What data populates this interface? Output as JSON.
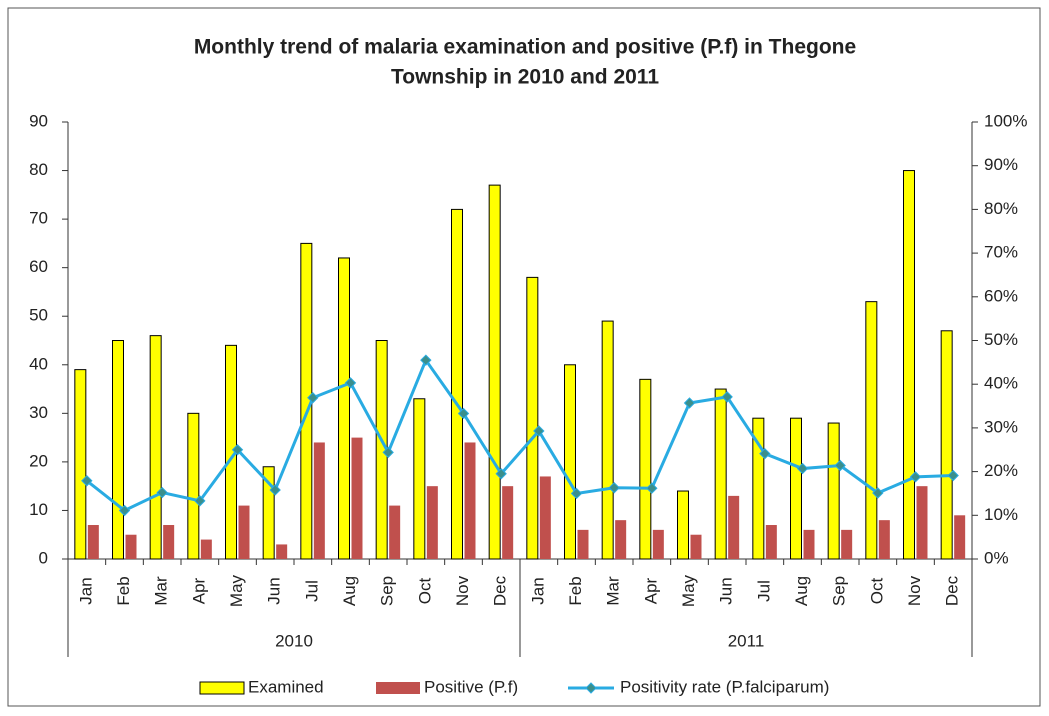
{
  "chart_data": {
    "type": "bar",
    "title": [
      "Monthly trend of malaria examination and positive (P.f) in Thegone",
      "Township in  2010 and 2011"
    ],
    "categories": [
      "Jan",
      "Feb",
      "Mar",
      "Apr",
      "May",
      "Jun",
      "Jul",
      "Aug",
      "Sep",
      "Oct",
      "Nov",
      "Dec",
      "Jan",
      "Feb",
      "Mar",
      "Apr",
      "May",
      "Jun",
      "Jul",
      "Aug",
      "Sep",
      "Oct",
      "Nov",
      "Dec"
    ],
    "category_groups": [
      "2010",
      "2011"
    ],
    "series": [
      {
        "name": "Examined",
        "type": "bar",
        "color": "#ffff00",
        "values": [
          39,
          45,
          46,
          30,
          44,
          19,
          65,
          62,
          45,
          33,
          72,
          77,
          58,
          40,
          49,
          37,
          14,
          35,
          29,
          29,
          28,
          53,
          80,
          47
        ]
      },
      {
        "name": "Positive (P.f)",
        "type": "bar",
        "color": "#c0504d",
        "values": [
          7,
          5,
          7,
          4,
          11,
          3,
          24,
          25,
          11,
          15,
          24,
          15,
          17,
          6,
          8,
          6,
          5,
          13,
          7,
          6,
          6,
          8,
          15,
          9
        ]
      },
      {
        "name": "Positivity rate (P.falciparum)",
        "type": "line",
        "axis": "y2",
        "color": "#29abe2",
        "marker_color": "#3a8f8c",
        "values": [
          17.9,
          11.1,
          15.2,
          13.3,
          25,
          15.8,
          36.9,
          40.3,
          24.4,
          45.5,
          33.3,
          19.5,
          29.3,
          15,
          16.3,
          16.2,
          35.7,
          37.1,
          24.1,
          20.7,
          21.4,
          15.1,
          18.8,
          19.1
        ]
      }
    ],
    "ylim": [
      0,
      90
    ],
    "yticks": [
      0,
      10,
      20,
      30,
      40,
      50,
      60,
      70,
      80,
      90
    ],
    "y2lim": [
      0,
      100
    ],
    "y2ticks": [
      {
        "value": 0,
        "label": "0%"
      },
      {
        "value": 10,
        "label": "10%"
      },
      {
        "value": 20,
        "label": "20%"
      },
      {
        "value": 30,
        "label": "30%"
      },
      {
        "value": 40,
        "label": "40%"
      },
      {
        "value": 50,
        "label": "50%"
      },
      {
        "value": 60,
        "label": "60%"
      },
      {
        "value": 70,
        "label": "70%"
      },
      {
        "value": 80,
        "label": "80%"
      },
      {
        "value": 90,
        "label": "90%"
      },
      {
        "value": 100,
        "label": "100%"
      }
    ],
    "grid": false,
    "legend": "bottom"
  }
}
